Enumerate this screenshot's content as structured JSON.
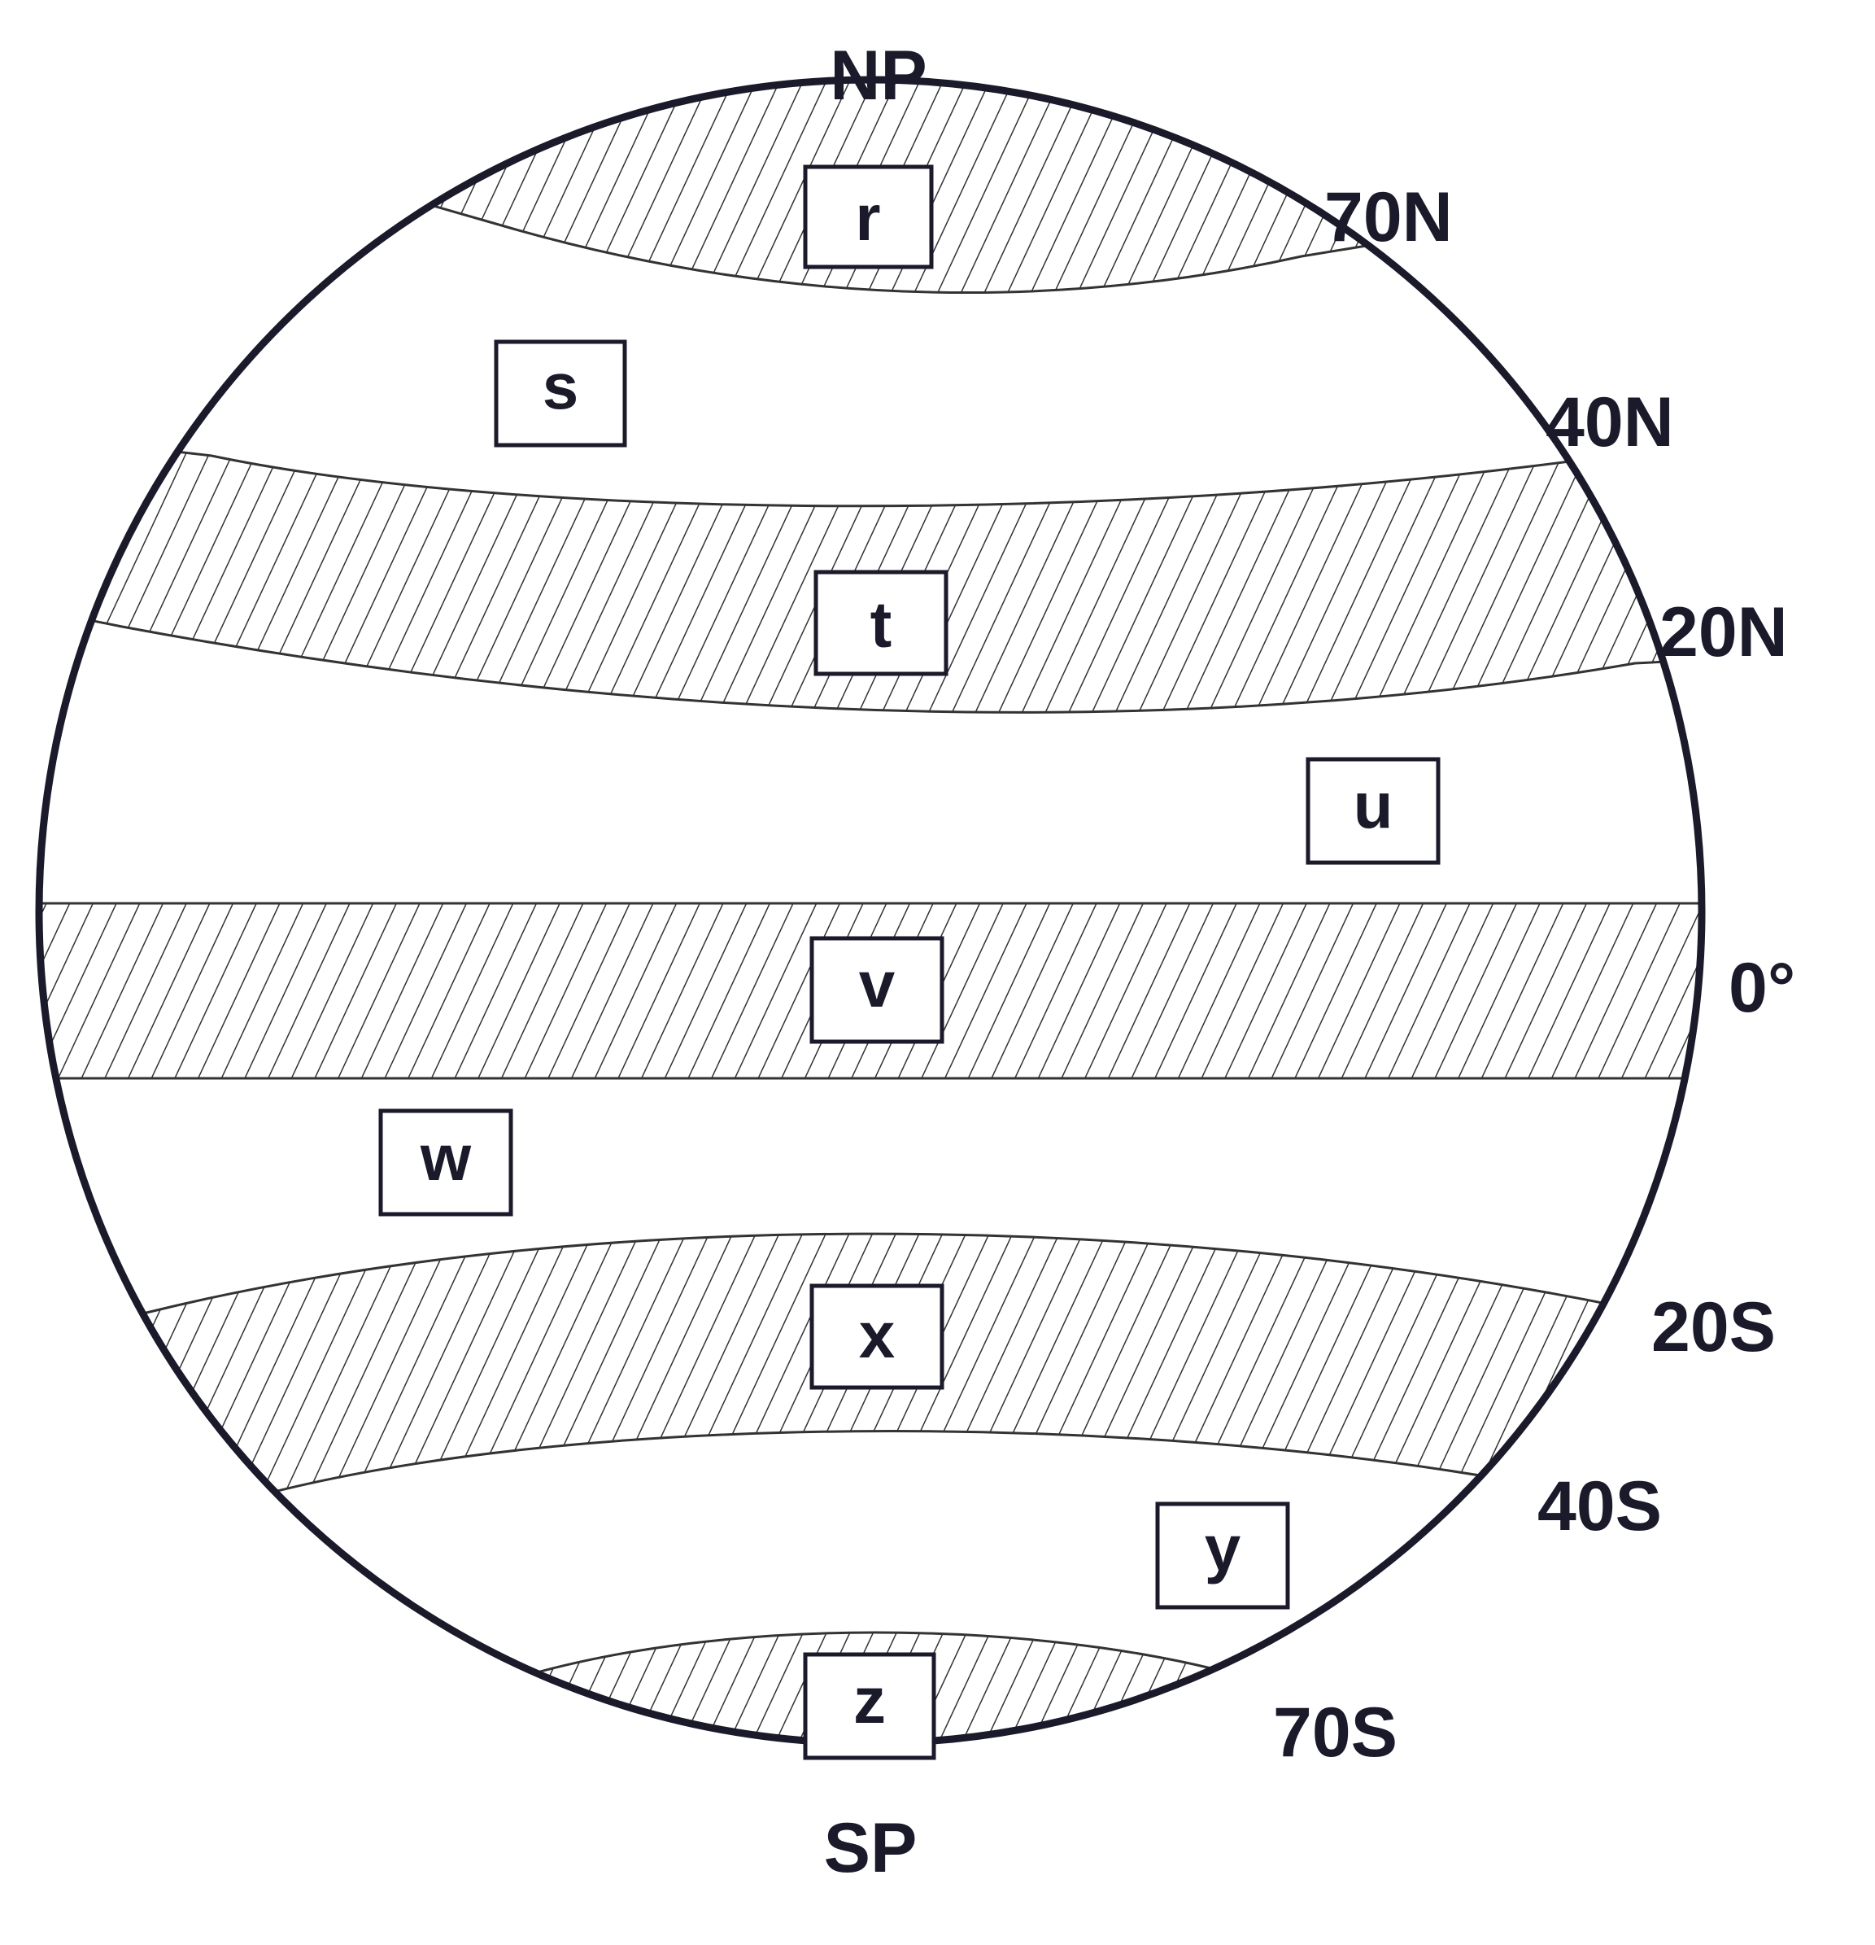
{
  "poles": {
    "north": "NP",
    "south": "SP"
  },
  "latitudes": {
    "lat_70n": "70N",
    "lat_40n": "40N",
    "lat_20n": "20N",
    "lat_0": "0°",
    "lat_20s": "20S",
    "lat_40s": "40S",
    "lat_70s": "70S"
  },
  "zones": {
    "r": "r",
    "s": "s",
    "t": "t",
    "u": "u",
    "v": "v",
    "w": "w",
    "x": "x",
    "y": "y",
    "z": "z"
  }
}
